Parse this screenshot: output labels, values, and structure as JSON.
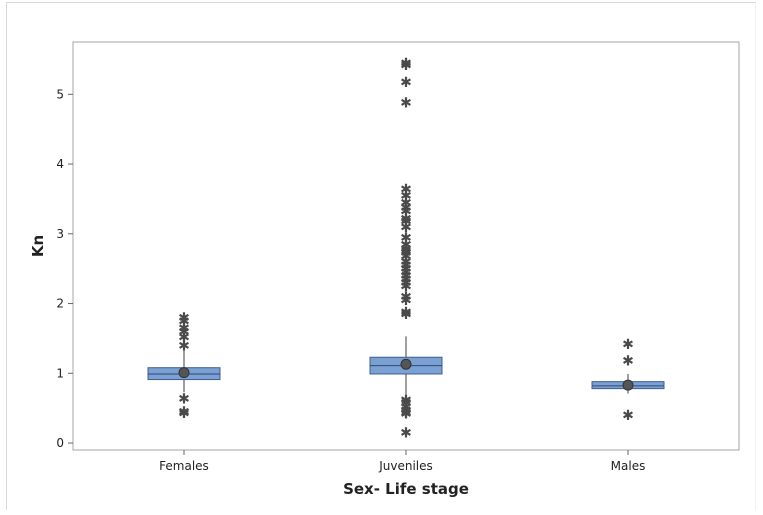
{
  "chart_data": {
    "type": "boxplot",
    "title": "",
    "xlabel": "Sex- Life stage",
    "ylabel": "Kn",
    "ylim": [
      -0.1,
      5.75
    ],
    "yticks": [
      0,
      1,
      2,
      3,
      4,
      5
    ],
    "grid": false,
    "legend": "none",
    "categories": [
      "Females",
      "Juveniles",
      "Males"
    ],
    "box_color": "#7aa0d4",
    "box_edge": "#3d5f8f",
    "series": [
      {
        "category": "Females",
        "q1": 0.91,
        "median": 0.99,
        "q3": 1.08,
        "whisker_low": 0.73,
        "whisker_high": 1.33,
        "mean": 1.01,
        "outliers": [
          1.8,
          1.75,
          1.65,
          1.6,
          1.52,
          1.4,
          0.64,
          0.45,
          0.43
        ]
      },
      {
        "category": "Juveniles",
        "q1": 0.99,
        "median": 1.11,
        "q3": 1.23,
        "whisker_low": 0.68,
        "whisker_high": 1.53,
        "mean": 1.13,
        "outliers": [
          5.45,
          5.42,
          5.18,
          4.88,
          3.64,
          3.55,
          3.45,
          3.38,
          3.33,
          3.22,
          3.18,
          3.1,
          2.95,
          2.85,
          2.78,
          2.75,
          2.73,
          2.68,
          2.6,
          2.55,
          2.5,
          2.45,
          2.4,
          2.35,
          2.3,
          2.25,
          2.1,
          2.05,
          1.88,
          1.85,
          0.62,
          0.58,
          0.52,
          0.47,
          0.44,
          0.42,
          0.15
        ]
      },
      {
        "category": "Males",
        "q1": 0.78,
        "median": 0.82,
        "q3": 0.88,
        "whisker_low": 0.71,
        "whisker_high": 0.99,
        "mean": 0.83,
        "outliers": [
          1.42,
          1.18,
          0.4
        ]
      }
    ]
  }
}
